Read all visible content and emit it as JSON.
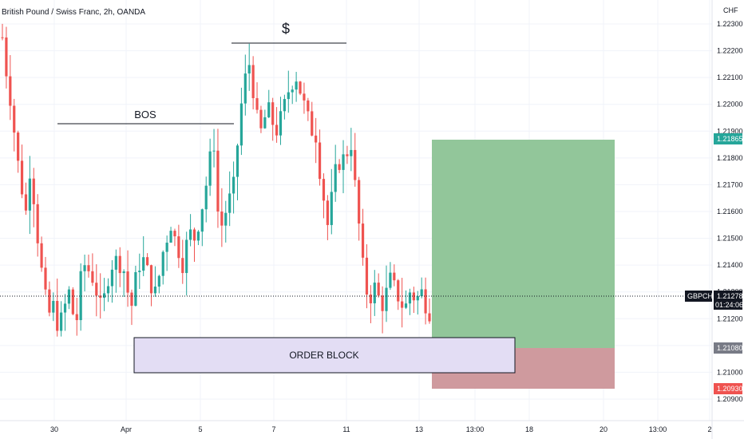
{
  "header": {
    "symbol_desc": "British Pound / Swiss Franc, 2h, OANDA",
    "currency": "CHF"
  },
  "chart_data": {
    "type": "candlestick",
    "ylim": [
      1.2088,
      1.2236
    ],
    "y_ticks": [
      "1.22300",
      "1.22200",
      "1.22100",
      "1.22000",
      "1.21900",
      "1.21800",
      "1.21700",
      "1.21600",
      "1.21500",
      "1.21400",
      "1.21300",
      "1.21200",
      "1.21100",
      "1.21000",
      "1.20900"
    ],
    "x_ticks": [
      "30",
      "Apr",
      "5",
      "7",
      "11",
      "13",
      "13:00",
      "18",
      "20",
      "13:00",
      "2"
    ],
    "colors": {
      "up": "#26a69a",
      "down": "#ef5350",
      "profit_zone": "#92c69a",
      "loss_zone": "#cf9a9e",
      "order_block": "#e3ddf4"
    },
    "annotations": {
      "bos": "BOS",
      "dollar": "$",
      "order_block": "ORDER BLOCK"
    },
    "price_tags": {
      "target": "1.21865",
      "current": "1.21278",
      "countdown": "01:24:06",
      "entry": "1.21080",
      "stop": "1.20930",
      "symbol": "GBPCHF"
    },
    "levels": {
      "bos": 1.21925,
      "dollar_line": 1.22225,
      "target": 1.21865,
      "current": 1.21278,
      "entry": 1.2108,
      "stop": 1.2093,
      "ob_top": 1.21116,
      "ob_bottom": 1.20985
    },
    "trend": [
      1.2225,
      1.2212,
      1.2202,
      1.219,
      1.2178,
      1.2168,
      1.216,
      1.2175,
      1.2165,
      1.215,
      1.2138,
      1.2128,
      1.2122,
      1.2125,
      1.2118,
      1.212,
      1.2125,
      1.213,
      1.2122,
      1.212,
      1.2135,
      1.214,
      1.2138,
      1.2135,
      1.213,
      1.2125,
      1.2128,
      1.2135,
      1.214,
      1.2142,
      1.214,
      1.2138,
      1.213,
      1.2125,
      1.2135,
      1.214,
      1.2142,
      1.2138,
      1.2132,
      1.213,
      1.2136,
      1.2145,
      1.215,
      1.2155,
      1.215,
      1.2145,
      1.214,
      1.2148,
      1.2152,
      1.215,
      1.2155,
      1.2162,
      1.217,
      1.218,
      1.2185,
      1.216,
      1.2155,
      1.216,
      1.2165,
      1.217,
      1.2185,
      1.22,
      1.221,
      1.2215,
      1.2205,
      1.2195,
      1.219,
      1.2195,
      1.2198,
      1.2193,
      1.219,
      1.2195,
      1.22,
      1.2205,
      1.2208,
      1.221,
      1.2205,
      1.22,
      1.2195,
      1.219,
      1.2188,
      1.2175,
      1.2165,
      1.2155,
      1.2165,
      1.2175,
      1.2178,
      1.218,
      1.2182,
      1.2185,
      1.217,
      1.2155,
      1.214,
      1.213,
      1.2128,
      1.2132,
      1.2128,
      1.2125,
      1.213,
      1.2135,
      1.2132,
      1.2128,
      1.2125,
      1.2125,
      1.213,
      1.2128,
      1.2128,
      1.213,
      1.2125,
      1.2122
    ]
  }
}
